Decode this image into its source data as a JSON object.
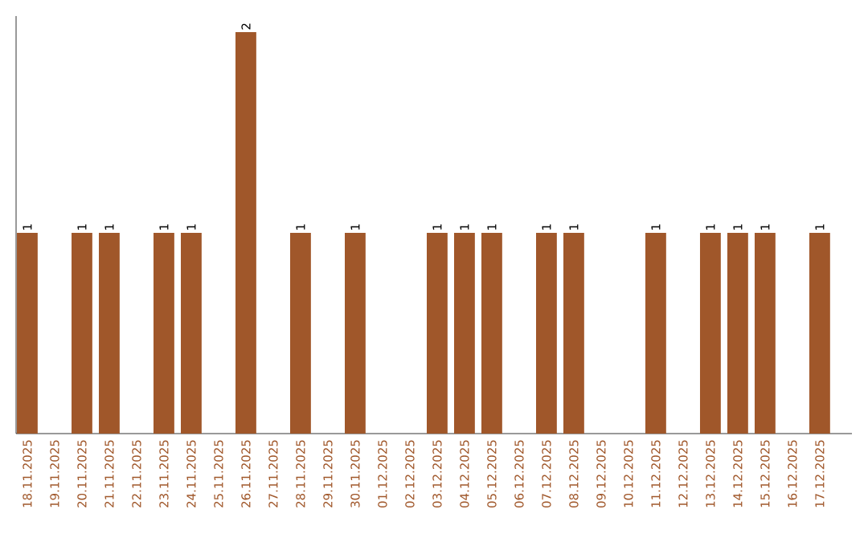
{
  "chart_data": {
    "type": "bar",
    "categories": [
      "18.11.2025",
      "19.11.2025",
      "20.11.2025",
      "21.11.2025",
      "22.11.2025",
      "23.11.2025",
      "24.11.2025",
      "25.11.2025",
      "26.11.2025",
      "27.11.2025",
      "28.11.2025",
      "29.11.2025",
      "30.11.2025",
      "01.12.2025",
      "02.12.2025",
      "03.12.2025",
      "04.12.2025",
      "05.12.2025",
      "06.12.2025",
      "07.12.2025",
      "08.12.2025",
      "09.12.2025",
      "10.12.2025",
      "11.12.2025",
      "12.12.2025",
      "13.12.2025",
      "14.12.2025",
      "15.12.2025",
      "16.12.2025",
      "17.12.2025"
    ],
    "values": [
      1,
      0,
      1,
      1,
      0,
      1,
      1,
      0,
      2,
      0,
      1,
      0,
      1,
      0,
      0,
      1,
      1,
      1,
      0,
      1,
      1,
      0,
      0,
      1,
      0,
      1,
      1,
      1,
      0,
      1
    ],
    "value_labels": [
      "1",
      null,
      "1",
      "1",
      null,
      "1",
      "1",
      null,
      "2",
      null,
      "1",
      null,
      "1",
      null,
      null,
      "1",
      "1",
      "1",
      null,
      "1",
      "1",
      null,
      null,
      "1",
      null,
      "1",
      "1",
      "1",
      null,
      "1"
    ],
    "color": "#a0572a",
    "ylim": [
      0,
      2.08
    ],
    "tick_labels": "x",
    "grid": false
  }
}
